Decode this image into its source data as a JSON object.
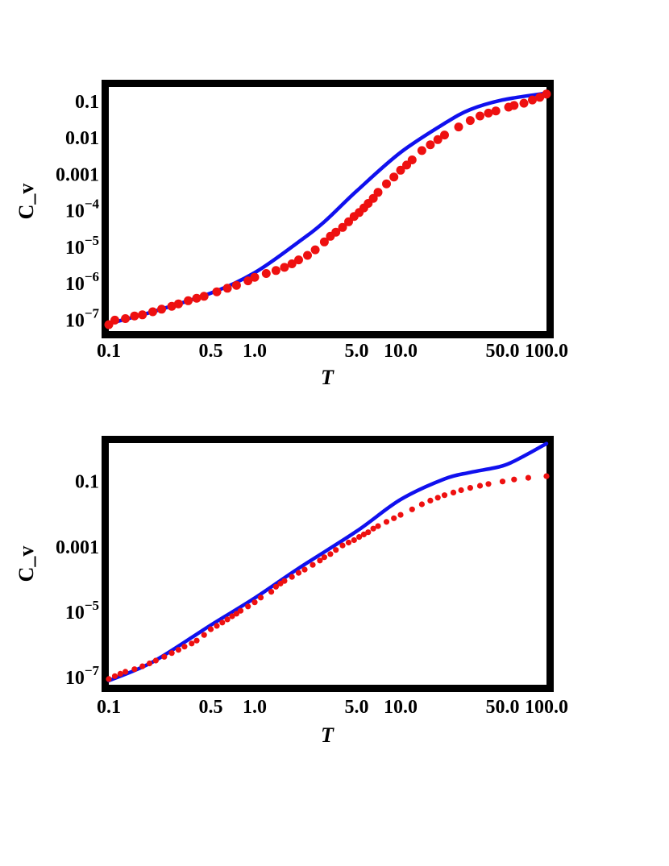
{
  "chart_data": [
    {
      "type": "scatter",
      "xlabel": "T",
      "ylabel": "C_v",
      "x_scale": "log",
      "y_scale": "log",
      "xlim": [
        0.1,
        100
      ],
      "ylim": [
        5e-08,
        0.25
      ],
      "x_ticks": [
        {
          "value": 0.1,
          "label": "0.1"
        },
        {
          "value": 0.5,
          "label": "0.5"
        },
        {
          "value": 1,
          "label": "1.0"
        },
        {
          "value": 5,
          "label": "5.0"
        },
        {
          "value": 10,
          "label": "10.0"
        },
        {
          "value": 50,
          "label": "50.0"
        },
        {
          "value": 100,
          "label": "100.0"
        }
      ],
      "y_ticks": [
        {
          "value": 1e-07,
          "base": "10",
          "exp": "−7"
        },
        {
          "value": 1e-06,
          "base": "10",
          "exp": "−6"
        },
        {
          "value": 1e-05,
          "base": "10",
          "exp": "−5"
        },
        {
          "value": 0.0001,
          "base": "10",
          "exp": "−4"
        },
        {
          "value": 0.001,
          "base": "0.001",
          "exp": ""
        },
        {
          "value": 0.01,
          "base": "0.01",
          "exp": ""
        },
        {
          "value": 0.1,
          "base": "0.1",
          "exp": ""
        }
      ],
      "line_color": "#1010ee",
      "marker_color": "#ee1010",
      "marker_size": "large",
      "grid": false,
      "series": [
        {
          "kind": "line",
          "points": [
            [
              0.1,
              8e-08
            ],
            [
              0.2,
              1.7e-07
            ],
            [
              0.5,
              5.5e-07
            ],
            [
              1.0,
              2e-06
            ],
            [
              2.0,
              1.4e-05
            ],
            [
              3.0,
              5e-05
            ],
            [
              5.0,
              0.00035
            ],
            [
              10.0,
              0.004
            ],
            [
              20.0,
              0.025
            ],
            [
              30.0,
              0.06
            ],
            [
              50.0,
              0.11
            ],
            [
              100.0,
              0.17
            ]
          ]
        },
        {
          "kind": "markers",
          "points": [
            [
              0.1,
              7.5e-08
            ],
            [
              0.11,
              1e-07
            ],
            [
              0.13,
              1.1e-07
            ],
            [
              0.15,
              1.3e-07
            ],
            [
              0.17,
              1.4e-07
            ],
            [
              0.2,
              1.7e-07
            ],
            [
              0.23,
              2e-07
            ],
            [
              0.27,
              2.4e-07
            ],
            [
              0.3,
              2.8e-07
            ],
            [
              0.35,
              3.4e-07
            ],
            [
              0.4,
              4e-07
            ],
            [
              0.45,
              4.5e-07
            ],
            [
              0.55,
              6e-07
            ],
            [
              0.65,
              7.5e-07
            ],
            [
              0.75,
              9e-07
            ],
            [
              0.9,
              1.2e-06
            ],
            [
              1.0,
              1.5e-06
            ],
            [
              1.2,
              1.9e-06
            ],
            [
              1.4,
              2.3e-06
            ],
            [
              1.6,
              2.8e-06
            ],
            [
              1.8,
              3.5e-06
            ],
            [
              2.0,
              4.5e-06
            ],
            [
              2.3,
              6e-06
            ],
            [
              2.6,
              8.5e-06
            ],
            [
              3.0,
              1.4e-05
            ],
            [
              3.3,
              2e-05
            ],
            [
              3.6,
              2.6e-05
            ],
            [
              4.0,
              3.5e-05
            ],
            [
              4.4,
              5e-05
            ],
            [
              4.8,
              7e-05
            ],
            [
              5.2,
              9e-05
            ],
            [
              5.6,
              0.00012
            ],
            [
              6.0,
              0.00016
            ],
            [
              6.5,
              0.00022
            ],
            [
              7.0,
              0.00032
            ],
            [
              8.0,
              0.00055
            ],
            [
              9.0,
              0.00085
            ],
            [
              10.0,
              0.0013
            ],
            [
              11.0,
              0.0018
            ],
            [
              12.0,
              0.0025
            ],
            [
              14.0,
              0.0045
            ],
            [
              16.0,
              0.0065
            ],
            [
              18.0,
              0.009
            ],
            [
              20.0,
              0.012
            ],
            [
              25.0,
              0.02
            ],
            [
              30.0,
              0.03
            ],
            [
              35.0,
              0.04
            ],
            [
              40.0,
              0.048
            ],
            [
              45.0,
              0.055
            ],
            [
              55.0,
              0.07
            ],
            [
              60.0,
              0.078
            ],
            [
              70.0,
              0.09
            ],
            [
              80.0,
              0.11
            ],
            [
              90.0,
              0.13
            ],
            [
              100.0,
              0.16
            ]
          ]
        }
      ]
    },
    {
      "type": "scatter",
      "xlabel": "T",
      "ylabel": "C_v",
      "x_scale": "log",
      "y_scale": "log",
      "xlim": [
        0.1,
        100
      ],
      "ylim": [
        6e-08,
        1.5
      ],
      "x_ticks": [
        {
          "value": 0.1,
          "label": "0.1"
        },
        {
          "value": 0.5,
          "label": "0.5"
        },
        {
          "value": 1,
          "label": "1.0"
        },
        {
          "value": 5,
          "label": "5.0"
        },
        {
          "value": 10,
          "label": "10.0"
        },
        {
          "value": 50,
          "label": "50.0"
        },
        {
          "value": 100,
          "label": "100.0"
        }
      ],
      "y_ticks": [
        {
          "value": 1e-07,
          "base": "10",
          "exp": "−7"
        },
        {
          "value": 1e-05,
          "base": "10",
          "exp": "−5"
        },
        {
          "value": 0.001,
          "base": "0.001",
          "exp": ""
        },
        {
          "value": 0.1,
          "base": "0.1",
          "exp": ""
        }
      ],
      "line_color": "#1010ee",
      "marker_color": "#ee1010",
      "marker_size": "small",
      "grid": false,
      "series": [
        {
          "kind": "line",
          "points": [
            [
              0.1,
              8e-08
            ],
            [
              0.2,
              3e-07
            ],
            [
              0.5,
              4e-06
            ],
            [
              1.0,
              2.7e-05
            ],
            [
              2.0,
              0.00022
            ],
            [
              5.0,
              0.003
            ],
            [
              10.0,
              0.028
            ],
            [
              20.0,
              0.12
            ],
            [
              30.0,
              0.19
            ],
            [
              50.0,
              0.3
            ],
            [
              70.0,
              0.6
            ],
            [
              100.0,
              1.45
            ]
          ]
        },
        {
          "kind": "markers",
          "points": [
            [
              0.1,
              9e-08
            ],
            [
              0.11,
              1.1e-07
            ],
            [
              0.12,
              1.3e-07
            ],
            [
              0.13,
              1.5e-07
            ],
            [
              0.15,
              1.8e-07
            ],
            [
              0.17,
              2.2e-07
            ],
            [
              0.19,
              2.7e-07
            ],
            [
              0.21,
              3.3e-07
            ],
            [
              0.24,
              4.3e-07
            ],
            [
              0.27,
              5.6e-07
            ],
            [
              0.3,
              7e-07
            ],
            [
              0.33,
              8.8e-07
            ],
            [
              0.37,
              1.1e-06
            ],
            [
              0.4,
              1.35e-06
            ],
            [
              0.45,
              2e-06
            ],
            [
              0.5,
              3e-06
            ],
            [
              0.55,
              3.8e-06
            ],
            [
              0.6,
              4.8e-06
            ],
            [
              0.65,
              6e-06
            ],
            [
              0.7,
              7.5e-06
            ],
            [
              0.75,
              9e-06
            ],
            [
              0.8,
              1.1e-05
            ],
            [
              0.9,
              1.5e-05
            ],
            [
              1.0,
              2e-05
            ],
            [
              1.1,
              2.8e-05
            ],
            [
              1.3,
              4.2e-05
            ],
            [
              1.4,
              6e-05
            ],
            [
              1.5,
              7.5e-05
            ],
            [
              1.6,
              9e-05
            ],
            [
              1.8,
              0.00012
            ],
            [
              2.0,
              0.00016
            ],
            [
              2.2,
              0.0002
            ],
            [
              2.5,
              0.00028
            ],
            [
              2.8,
              0.00038
            ],
            [
              3.0,
              0.00048
            ],
            [
              3.3,
              0.0006
            ],
            [
              3.6,
              0.0008
            ],
            [
              4.0,
              0.0011
            ],
            [
              4.4,
              0.00135
            ],
            [
              4.8,
              0.0016
            ],
            [
              5.2,
              0.002
            ],
            [
              5.6,
              0.0024
            ],
            [
              6.0,
              0.0028
            ],
            [
              6.5,
              0.0036
            ],
            [
              7.0,
              0.0043
            ],
            [
              8.0,
              0.0058
            ],
            [
              9.0,
              0.0075
            ],
            [
              10.0,
              0.0095
            ],
            [
              12.0,
              0.014
            ],
            [
              14.0,
              0.02
            ],
            [
              16.0,
              0.026
            ],
            [
              18.0,
              0.032
            ],
            [
              20.0,
              0.038
            ],
            [
              23.0,
              0.046
            ],
            [
              26.0,
              0.054
            ],
            [
              30.0,
              0.064
            ],
            [
              35.0,
              0.074
            ],
            [
              40.0,
              0.084
            ],
            [
              50.0,
              0.1
            ],
            [
              60.0,
              0.115
            ],
            [
              75.0,
              0.13
            ],
            [
              100.0,
              0.145
            ]
          ]
        }
      ]
    }
  ]
}
